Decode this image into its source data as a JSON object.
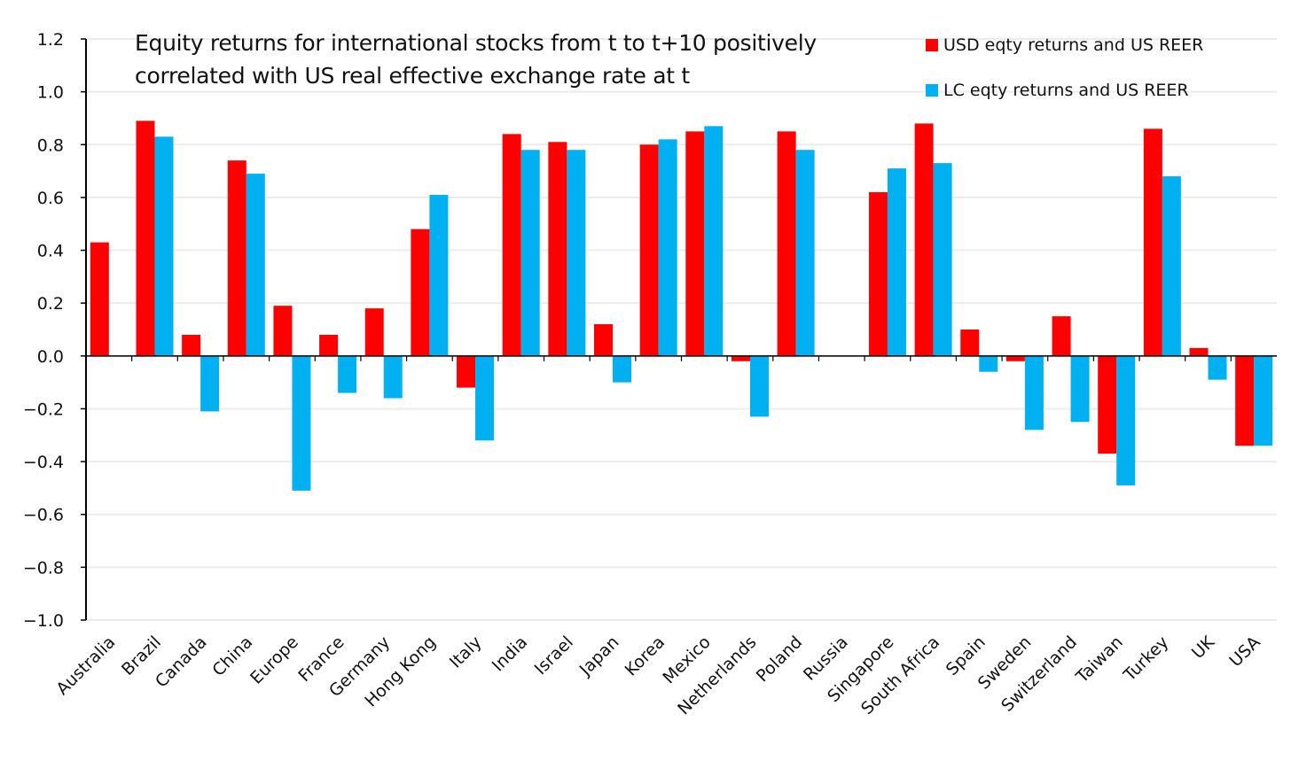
{
  "chart_data": {
    "type": "bar",
    "title": "Equity returns for international stocks from t to t+10 positively correlated with US real effective exchange rate at t",
    "title_lines": [
      "Equity returns for international stocks from t to t+10 positively",
      "correlated with US real effective exchange rate at t"
    ],
    "xlabel": "",
    "ylabel": "",
    "ylim": [
      -1.0,
      1.2
    ],
    "yticks": [
      "1.2",
      "1.0",
      "0.8",
      "0.6",
      "0.4",
      "0.2",
      "0.0",
      "-0.2",
      "-0.4",
      "-0.6",
      "-0.8",
      "-1.0"
    ],
    "grid": true,
    "legend_position": "top-right",
    "categories": [
      "Australia",
      "Brazil",
      "Canada",
      "China",
      "Europe",
      "France",
      "Germany",
      "Hong Kong",
      "Italy",
      "India",
      "Israel",
      "Japan",
      "Korea",
      "Mexico",
      "Netherlands",
      "Poland",
      "Russia",
      "Singapore",
      "South Africa",
      "Spain",
      "Sweden",
      "Switzerland",
      "Taiwan",
      "Turkey",
      "UK",
      "USA"
    ],
    "series": [
      {
        "name": "USD eqty returns and US REER",
        "color": "#ff0000",
        "values": [
          0.43,
          0.89,
          0.08,
          0.74,
          0.19,
          0.08,
          0.18,
          0.48,
          -0.12,
          0.84,
          0.81,
          0.12,
          0.8,
          0.85,
          -0.02,
          0.85,
          null,
          0.62,
          0.88,
          0.1,
          -0.02,
          0.15,
          -0.37,
          0.86,
          0.03,
          -0.34
        ]
      },
      {
        "name": "LC eqty returns and US REER",
        "color": "#00b0f0",
        "values": [
          null,
          0.83,
          -0.21,
          0.69,
          -0.51,
          -0.14,
          -0.16,
          0.61,
          -0.32,
          0.78,
          0.78,
          -0.1,
          0.82,
          0.87,
          -0.23,
          0.78,
          null,
          0.71,
          0.73,
          -0.06,
          -0.28,
          -0.25,
          -0.49,
          0.68,
          -0.09,
          -0.34
        ]
      }
    ]
  }
}
